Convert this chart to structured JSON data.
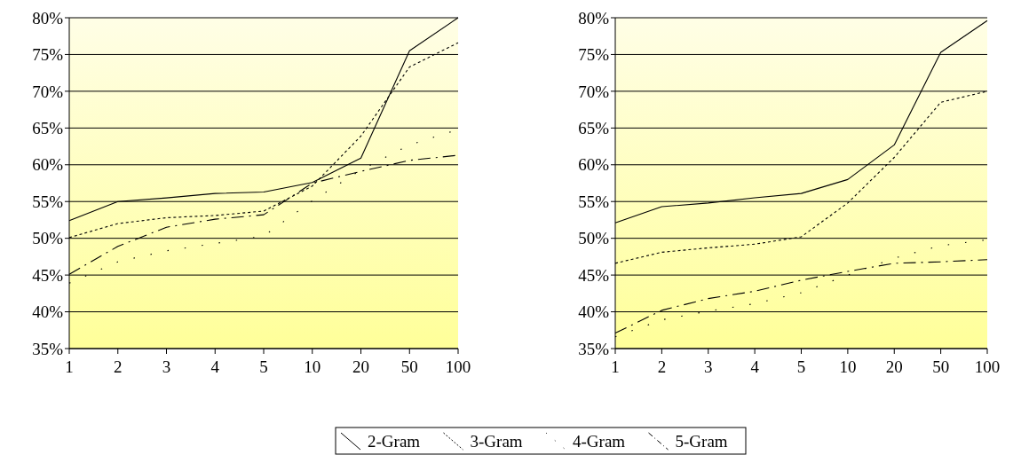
{
  "chart_data": [
    {
      "type": "line",
      "categories": [
        "1",
        "2",
        "3",
        "4",
        "5",
        "10",
        "20",
        "50",
        "100"
      ],
      "ylim": [
        35,
        80
      ],
      "yticks": [
        {
          "value": 35,
          "label": "35%"
        },
        {
          "value": 40,
          "label": "40%"
        },
        {
          "value": 45,
          "label": "45%"
        },
        {
          "value": 50,
          "label": "50%"
        },
        {
          "value": 55,
          "label": "55%"
        },
        {
          "value": 60,
          "label": "60%"
        },
        {
          "value": 65,
          "label": "65%"
        },
        {
          "value": 70,
          "label": "70%"
        },
        {
          "value": 75,
          "label": "75%"
        },
        {
          "value": 80,
          "label": "80%"
        }
      ],
      "grid": "y",
      "legend": "bottom",
      "marker": "none",
      "series": [
        {
          "name": "2-Gram",
          "color": "#000000",
          "line_style": "solid",
          "values": [
            52.4,
            55.0,
            55.5,
            56.1,
            56.3,
            57.6,
            60.9,
            75.5,
            80.0
          ]
        },
        {
          "name": "3-Gram",
          "color": "#000000",
          "line_style": "dashed",
          "values": [
            50.1,
            52.0,
            52.8,
            53.1,
            53.7,
            57.1,
            63.9,
            73.3,
            76.6
          ]
        },
        {
          "name": "4-Gram",
          "color": "#000000",
          "line_style": "dotted",
          "values": [
            43.9,
            46.8,
            48.3,
            49.3,
            50.3,
            55.1,
            59.3,
            62.7,
            64.8
          ]
        },
        {
          "name": "5-Gram",
          "color": "#000000",
          "line_style": "dashdot",
          "values": [
            45.1,
            48.9,
            51.5,
            52.6,
            53.2,
            57.5,
            59.1,
            60.6,
            61.3
          ]
        }
      ]
    },
    {
      "type": "line",
      "categories": [
        "1",
        "2",
        "3",
        "4",
        "5",
        "10",
        "20",
        "50",
        "100"
      ],
      "ylim": [
        35,
        80
      ],
      "yticks": [
        {
          "value": 35,
          "label": "35%"
        },
        {
          "value": 40,
          "label": "40%"
        },
        {
          "value": 45,
          "label": "45%"
        },
        {
          "value": 50,
          "label": "50%"
        },
        {
          "value": 55,
          "label": "55%"
        },
        {
          "value": 60,
          "label": "60%"
        },
        {
          "value": 65,
          "label": "65%"
        },
        {
          "value": 70,
          "label": "70%"
        },
        {
          "value": 75,
          "label": "75%"
        },
        {
          "value": 80,
          "label": "80%"
        }
      ],
      "grid": "y",
      "marker": "none",
      "series": [
        {
          "color": "#000000",
          "line_style": "solid",
          "values": [
            52.1,
            54.3,
            54.8,
            55.5,
            56.1,
            58.0,
            62.7,
            75.3,
            79.6
          ]
        },
        {
          "color": "#000000",
          "line_style": "dashed",
          "values": [
            46.6,
            48.1,
            48.7,
            49.2,
            50.2,
            54.8,
            61.0,
            68.5,
            70.0
          ]
        },
        {
          "color": "#000000",
          "line_style": "dotted",
          "values": [
            36.6,
            38.9,
            40.1,
            41.1,
            42.6,
            45.0,
            47.3,
            49.0,
            49.8
          ]
        },
        {
          "color": "#000000",
          "line_style": "dashdot",
          "values": [
            37.1,
            40.2,
            41.8,
            42.8,
            44.3,
            45.5,
            46.6,
            46.8,
            47.1
          ]
        }
      ]
    }
  ]
}
